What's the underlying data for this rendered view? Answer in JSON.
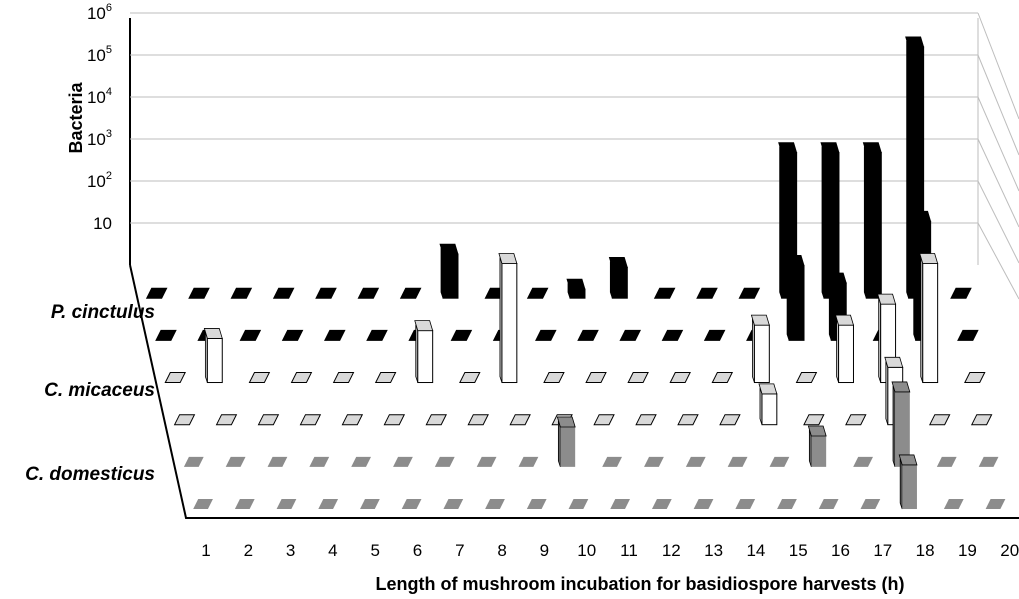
{
  "chart_data": {
    "type": "bar",
    "subtype": "3d-column-log",
    "y_scale": "log",
    "ylabel": "Bacteria",
    "xlabel": "Length of mushroom incubation for basidiospore harvests  (h)",
    "y_ticks": [
      {
        "base": "10",
        "exp": "6"
      },
      {
        "base": "10",
        "exp": "5"
      },
      {
        "base": "10",
        "exp": "4"
      },
      {
        "base": "10",
        "exp": "3"
      },
      {
        "base": "10",
        "exp": "2"
      },
      {
        "base": "10",
        "exp": ""
      }
    ],
    "x": [
      1,
      2,
      3,
      4,
      5,
      6,
      7,
      8,
      9,
      10,
      11,
      12,
      13,
      14,
      15,
      16,
      17,
      18,
      19,
      20
    ],
    "x_labels": [
      "1",
      "2",
      "3",
      "4",
      "5",
      "6",
      "7",
      "8",
      "9",
      "10",
      "11",
      "12",
      "13",
      "14",
      "15",
      "16",
      "17",
      "18",
      "19",
      "20"
    ],
    "row_labels": [
      "P. cinctulus",
      "C. micaceus",
      "C. domesticus"
    ],
    "colors": {
      "P. cinctulus": "#000000",
      "C. micaceus": "#ffffff",
      "C. domesticus": "#8c8c8c"
    },
    "series": [
      {
        "group": "P. cinctulus",
        "values": [
          0,
          0,
          0,
          0,
          0,
          0,
          0,
          10,
          0,
          0,
          1.6,
          5,
          0,
          0,
          0,
          2000,
          2000,
          2000,
          500000,
          0
        ]
      },
      {
        "group": "P. cinctulus",
        "values": [
          0,
          0,
          0,
          0,
          0,
          0,
          0,
          0,
          0,
          0,
          0,
          0,
          0,
          0,
          0,
          50,
          20,
          0,
          500,
          0
        ]
      },
      {
        "group": "C. micaceus",
        "values": [
          0,
          10,
          0,
          0,
          0,
          0,
          15,
          0,
          500,
          0,
          0,
          0,
          0,
          0,
          20,
          0,
          20,
          60,
          500,
          0
        ]
      },
      {
        "group": "C. micaceus",
        "values": [
          0,
          0,
          0,
          0,
          0,
          0,
          0,
          0,
          0,
          0,
          0,
          0,
          0,
          0,
          5,
          0,
          0,
          20,
          0,
          0
        ]
      },
      {
        "group": "C. domesticus",
        "values": [
          0,
          0,
          0,
          0,
          0,
          0,
          0,
          0,
          0,
          8,
          0,
          0,
          0,
          0,
          0,
          5,
          0,
          50,
          0,
          0
        ]
      },
      {
        "group": "C. domesticus",
        "values": [
          0,
          0,
          0,
          0,
          0,
          0,
          0,
          0,
          0,
          0,
          0,
          0,
          0,
          0,
          0,
          0,
          0,
          10,
          0,
          0
        ]
      }
    ]
  }
}
